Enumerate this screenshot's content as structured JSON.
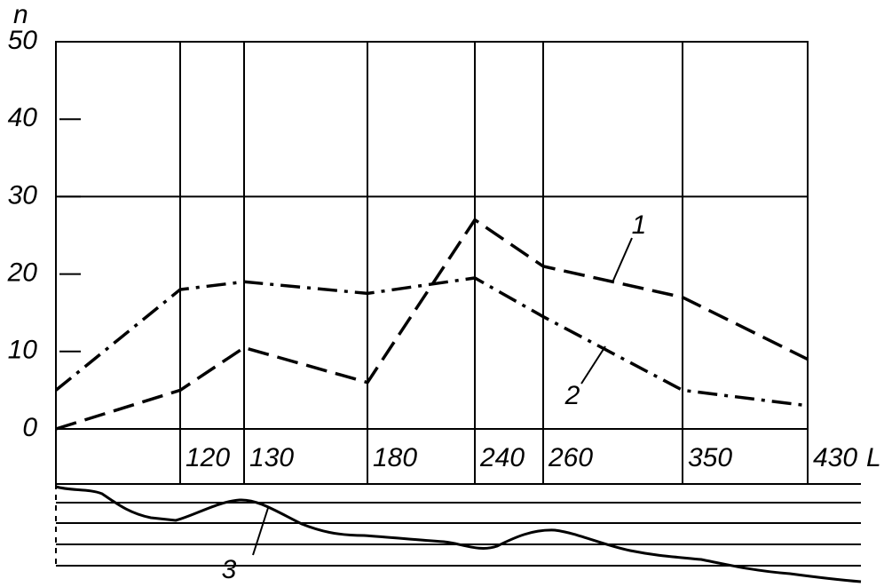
{
  "chart_data": {
    "type": "line",
    "y_label": "n",
    "x_label": "L",
    "categories": [
      null,
      "120",
      "130",
      "180",
      "240",
      "260",
      "350",
      "430"
    ],
    "series": [
      {
        "name": "1",
        "color": "#000000",
        "style": "dashed",
        "values": [
          0,
          5,
          10.5,
          6,
          27,
          21,
          17,
          9
        ]
      },
      {
        "name": "2",
        "color": "#000000",
        "style": "dash-dot",
        "values": [
          5,
          18,
          19,
          17.5,
          19.5,
          14.5,
          5,
          3
        ]
      }
    ],
    "ylim": [
      0,
      50
    ],
    "yticks": [
      0,
      10,
      20,
      30,
      40,
      50
    ],
    "ygrid": [
      30
    ],
    "profile": {
      "label": "3"
    }
  }
}
